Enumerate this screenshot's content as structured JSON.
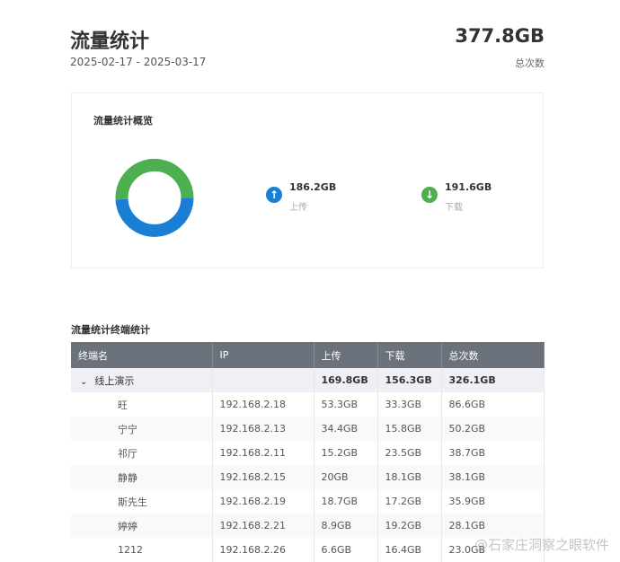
{
  "header": {
    "title": "流量统计",
    "date_range": "2025-02-17 - 2025-03-17",
    "total_value": "377.8GB",
    "total_label": "总次数"
  },
  "overview": {
    "title": "流量统计概览",
    "upload": {
      "value": "186.2GB",
      "label": "上传",
      "icon": "arrow-up-icon",
      "color": "#1a7fd4"
    },
    "download": {
      "value": "191.6GB",
      "label": "下载",
      "icon": "arrow-down-icon",
      "color": "#4caf50"
    }
  },
  "chart_data": {
    "type": "pie",
    "donut": true,
    "categories": [
      "上传",
      "下载"
    ],
    "values": [
      186.2,
      191.6
    ],
    "colors": [
      "#1a7fd4",
      "#4caf50"
    ]
  },
  "table": {
    "title": "流量统计终端统计",
    "columns": [
      "终端名",
      "IP",
      "上传",
      "下载",
      "总次数"
    ],
    "group": {
      "name": "线上演示",
      "ip": "",
      "upload": "169.8GB",
      "download": "156.3GB",
      "total": "326.1GB"
    },
    "rows": [
      {
        "name": "旺",
        "ip": "192.168.2.18",
        "upload": "53.3GB",
        "download": "33.3GB",
        "total": "86.6GB"
      },
      {
        "name": "宁宁",
        "ip": "192.168.2.13",
        "upload": "34.4GB",
        "download": "15.8GB",
        "total": "50.2GB"
      },
      {
        "name": "祁厅",
        "ip": "192.168.2.11",
        "upload": "15.2GB",
        "download": "23.5GB",
        "total": "38.7GB"
      },
      {
        "name": "静静",
        "ip": "192.168.2.15",
        "upload": "20GB",
        "download": "18.1GB",
        "total": "38.1GB"
      },
      {
        "name": "斯先生",
        "ip": "192.168.2.19",
        "upload": "18.7GB",
        "download": "17.2GB",
        "total": "35.9GB"
      },
      {
        "name": "婷婷",
        "ip": "192.168.2.21",
        "upload": "8.9GB",
        "download": "19.2GB",
        "total": "28.1GB"
      },
      {
        "name": "1212",
        "ip": "192.168.2.26",
        "upload": "6.6GB",
        "download": "16.4GB",
        "total": "23.0GB"
      }
    ]
  },
  "watermark": "@石家庄洞察之眼软件"
}
